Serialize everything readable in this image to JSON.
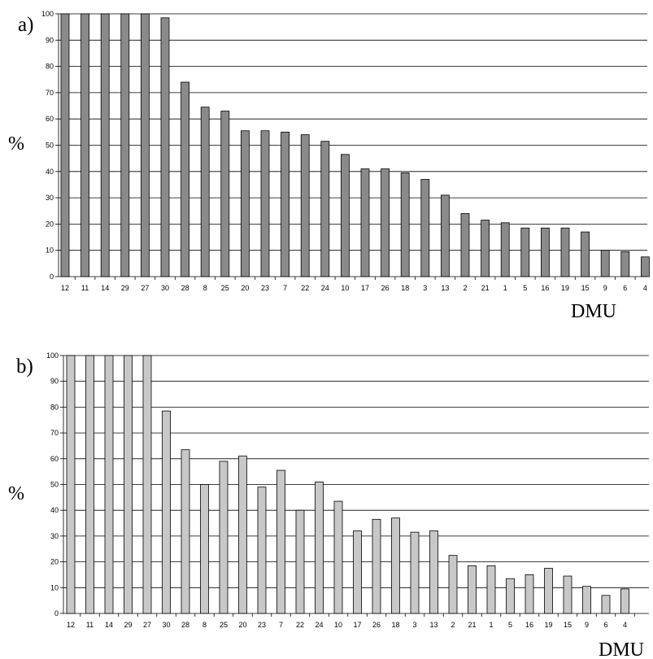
{
  "chart_data": [
    {
      "type": "bar",
      "panel_label": "a)",
      "ylabel": "%",
      "xlabel": "DMU",
      "ylim": [
        0,
        100
      ],
      "yticks": [
        0,
        10,
        20,
        30,
        40,
        50,
        60,
        70,
        80,
        90,
        100
      ],
      "grid": "horizontal",
      "bar_color": "#8a8a8a",
      "categories": [
        "12",
        "11",
        "14",
        "29",
        "27",
        "30",
        "28",
        "8",
        "25",
        "20",
        "23",
        "7",
        "22",
        "24",
        "10",
        "17",
        "26",
        "18",
        "3",
        "13",
        "2",
        "21",
        "1",
        "5",
        "16",
        "19",
        "15",
        "9",
        "6",
        "4"
      ],
      "values": [
        100,
        100,
        100,
        100,
        100,
        98.5,
        74,
        64.5,
        63,
        55.5,
        55.5,
        55,
        54,
        51.5,
        46.5,
        41,
        41,
        39.5,
        37,
        31,
        24,
        21.5,
        20.5,
        18.5,
        18.5,
        18.5,
        17,
        10,
        9.5,
        7.5
      ]
    },
    {
      "type": "bar",
      "panel_label": "b)",
      "ylabel": "%",
      "xlabel": "DMU",
      "ylim": [
        0,
        100
      ],
      "yticks": [
        0,
        10,
        20,
        30,
        40,
        50,
        60,
        70,
        80,
        90,
        100
      ],
      "grid": "horizontal",
      "bar_color": "#c8c8c8",
      "categories": [
        "12",
        "11",
        "14",
        "29",
        "27",
        "30",
        "28",
        "8",
        "25",
        "20",
        "23",
        "7",
        "22",
        "24",
        "10",
        "17",
        "26",
        "18",
        "3",
        "13",
        "2",
        "21",
        "1",
        "5",
        "16",
        "19",
        "15",
        "9",
        "6",
        "4"
      ],
      "values": [
        100,
        100,
        100,
        100,
        100,
        78.5,
        63.5,
        50,
        59,
        61,
        49,
        55.5,
        40,
        51,
        43.5,
        32,
        36.5,
        37,
        31.5,
        32,
        22.5,
        18.5,
        18.5,
        13.5,
        15,
        17.5,
        14.5,
        10.5,
        7,
        9.5
      ]
    }
  ]
}
